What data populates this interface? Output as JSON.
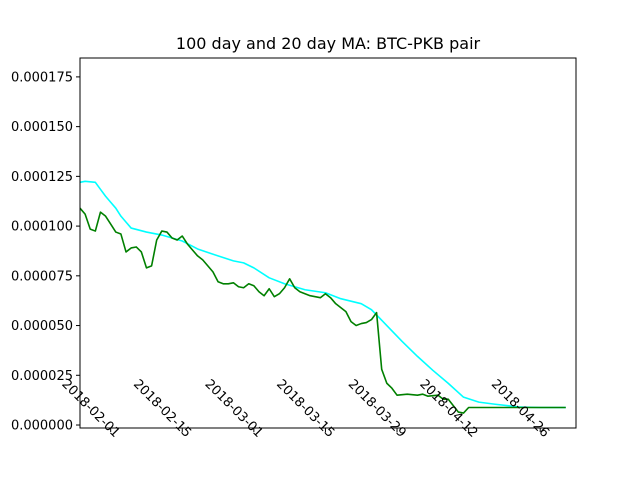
{
  "chart_data": {
    "type": "line",
    "title": "100 day and 20 day MA: BTC-PKB pair",
    "xlabel": "",
    "ylabel": "",
    "x_range": [
      "2018-01-26",
      "2018-05-03"
    ],
    "ylim": [
      -1.5e-06,
      0.0001845
    ],
    "grid": false,
    "y_ticks": [
      {
        "value": 0.0,
        "label": "0.000000"
      },
      {
        "value": 2.5e-05,
        "label": "0.000025"
      },
      {
        "value": 5e-05,
        "label": "0.000050"
      },
      {
        "value": 7.5e-05,
        "label": "0.000075"
      },
      {
        "value": 0.0001,
        "label": "0.000100"
      },
      {
        "value": 0.000125,
        "label": "0.000125"
      },
      {
        "value": 0.00015,
        "label": "0.000150"
      },
      {
        "value": 0.000175,
        "label": "0.000175"
      }
    ],
    "x_ticks": [
      {
        "value": "2018-02-01",
        "label": "2018-02-01"
      },
      {
        "value": "2018-02-15",
        "label": "2018-02-15"
      },
      {
        "value": "2018-03-01",
        "label": "2018-03-01"
      },
      {
        "value": "2018-03-15",
        "label": "2018-03-15"
      },
      {
        "value": "2018-03-29",
        "label": "2018-03-29"
      },
      {
        "value": "2018-04-12",
        "label": "2018-04-12"
      },
      {
        "value": "2018-04-26",
        "label": "2018-04-26"
      }
    ],
    "series": [
      {
        "color": "#00ffff",
        "points": [
          [
            "2018-01-26",
            0.000122
          ],
          [
            "2018-01-27",
            0.0001225
          ],
          [
            "2018-01-29",
            0.000122
          ],
          [
            "2018-01-30",
            0.0001185
          ],
          [
            "2018-01-31",
            0.000115
          ],
          [
            "2018-02-01",
            0.000112
          ],
          [
            "2018-02-02",
            0.000109
          ],
          [
            "2018-02-03",
            0.000105
          ],
          [
            "2018-02-05",
            9.9e-05
          ],
          [
            "2018-02-08",
            9.7e-05
          ],
          [
            "2018-02-11",
            9.55e-05
          ],
          [
            "2018-02-15",
            9.25e-05
          ],
          [
            "2018-02-18",
            8.85e-05
          ],
          [
            "2018-02-22",
            8.5e-05
          ],
          [
            "2018-02-25",
            8.25e-05
          ],
          [
            "2018-02-27",
            8.15e-05
          ],
          [
            "2018-03-01",
            7.9e-05
          ],
          [
            "2018-03-04",
            7.4e-05
          ],
          [
            "2018-03-07",
            7.1e-05
          ],
          [
            "2018-03-11",
            6.8e-05
          ],
          [
            "2018-03-15",
            6.65e-05
          ],
          [
            "2018-03-18",
            6.35e-05
          ],
          [
            "2018-03-22",
            6.1e-05
          ],
          [
            "2018-03-24",
            5.8e-05
          ],
          [
            "2018-03-27",
            5e-05
          ],
          [
            "2018-03-30",
            4.2e-05
          ],
          [
            "2018-04-02",
            3.45e-05
          ],
          [
            "2018-04-05",
            2.75e-05
          ],
          [
            "2018-04-08",
            2.1e-05
          ],
          [
            "2018-04-11",
            1.4e-05
          ],
          [
            "2018-04-14",
            1.15e-05
          ],
          [
            "2018-04-17",
            1.05e-05
          ],
          [
            "2018-04-22",
            9e-06
          ],
          [
            "2018-04-26",
            8.8e-06
          ],
          [
            "2018-05-01",
            8.8e-06
          ]
        ]
      },
      {
        "color": "#008000",
        "points": [
          [
            "2018-01-26",
            0.000109
          ],
          [
            "2018-01-27",
            0.000106
          ],
          [
            "2018-01-28",
            9.85e-05
          ],
          [
            "2018-01-29",
            9.75e-05
          ],
          [
            "2018-01-30",
            0.000107
          ],
          [
            "2018-01-31",
            0.000105
          ],
          [
            "2018-02-01",
            0.000101
          ],
          [
            "2018-02-02",
            9.7e-05
          ],
          [
            "2018-02-03",
            9.6e-05
          ],
          [
            "2018-02-04",
            8.7e-05
          ],
          [
            "2018-02-05",
            8.9e-05
          ],
          [
            "2018-02-06",
            8.95e-05
          ],
          [
            "2018-02-07",
            8.7e-05
          ],
          [
            "2018-02-08",
            7.9e-05
          ],
          [
            "2018-02-09",
            8e-05
          ],
          [
            "2018-02-10",
            9.3e-05
          ],
          [
            "2018-02-11",
            9.75e-05
          ],
          [
            "2018-02-12",
            9.7e-05
          ],
          [
            "2018-02-13",
            9.4e-05
          ],
          [
            "2018-02-14",
            9.3e-05
          ],
          [
            "2018-02-15",
            9.5e-05
          ],
          [
            "2018-02-16",
            9.1e-05
          ],
          [
            "2018-02-17",
            8.8e-05
          ],
          [
            "2018-02-18",
            8.5e-05
          ],
          [
            "2018-02-19",
            8.3e-05
          ],
          [
            "2018-02-20",
            8e-05
          ],
          [
            "2018-02-21",
            7.7e-05
          ],
          [
            "2018-02-22",
            7.2e-05
          ],
          [
            "2018-02-23",
            7.1e-05
          ],
          [
            "2018-02-24",
            7.1e-05
          ],
          [
            "2018-02-25",
            7.15e-05
          ],
          [
            "2018-02-26",
            6.95e-05
          ],
          [
            "2018-02-27",
            6.9e-05
          ],
          [
            "2018-02-28",
            7.1e-05
          ],
          [
            "2018-03-01",
            7e-05
          ],
          [
            "2018-03-02",
            6.7e-05
          ],
          [
            "2018-03-03",
            6.5e-05
          ],
          [
            "2018-03-04",
            6.85e-05
          ],
          [
            "2018-03-05",
            6.45e-05
          ],
          [
            "2018-03-06",
            6.6e-05
          ],
          [
            "2018-03-07",
            6.9e-05
          ],
          [
            "2018-03-08",
            7.35e-05
          ],
          [
            "2018-03-09",
            6.9e-05
          ],
          [
            "2018-03-10",
            6.7e-05
          ],
          [
            "2018-03-11",
            6.6e-05
          ],
          [
            "2018-03-12",
            6.5e-05
          ],
          [
            "2018-03-13",
            6.45e-05
          ],
          [
            "2018-03-14",
            6.4e-05
          ],
          [
            "2018-03-15",
            6.6e-05
          ],
          [
            "2018-03-16",
            6.4e-05
          ],
          [
            "2018-03-17",
            6.1e-05
          ],
          [
            "2018-03-18",
            5.9e-05
          ],
          [
            "2018-03-19",
            5.7e-05
          ],
          [
            "2018-03-20",
            5.2e-05
          ],
          [
            "2018-03-21",
            5e-05
          ],
          [
            "2018-03-22",
            5.1e-05
          ],
          [
            "2018-03-23",
            5.15e-05
          ],
          [
            "2018-03-24",
            5.3e-05
          ],
          [
            "2018-03-25",
            5.65e-05
          ],
          [
            "2018-03-26",
            2.8e-05
          ],
          [
            "2018-03-27",
            2.1e-05
          ],
          [
            "2018-03-28",
            1.85e-05
          ],
          [
            "2018-03-29",
            1.5e-05
          ],
          [
            "2018-03-31",
            1.55e-05
          ],
          [
            "2018-04-02",
            1.5e-05
          ],
          [
            "2018-04-03",
            1.55e-05
          ],
          [
            "2018-04-04",
            1.45e-05
          ],
          [
            "2018-04-06",
            1.5e-05
          ],
          [
            "2018-04-07",
            1.3e-05
          ],
          [
            "2018-04-08",
            1.3e-05
          ],
          [
            "2018-04-10",
            6.5e-06
          ],
          [
            "2018-04-11",
            6e-06
          ],
          [
            "2018-04-12",
            8.8e-06
          ],
          [
            "2018-04-20",
            8.8e-06
          ],
          [
            "2018-05-01",
            8.8e-06
          ]
        ]
      }
    ]
  }
}
